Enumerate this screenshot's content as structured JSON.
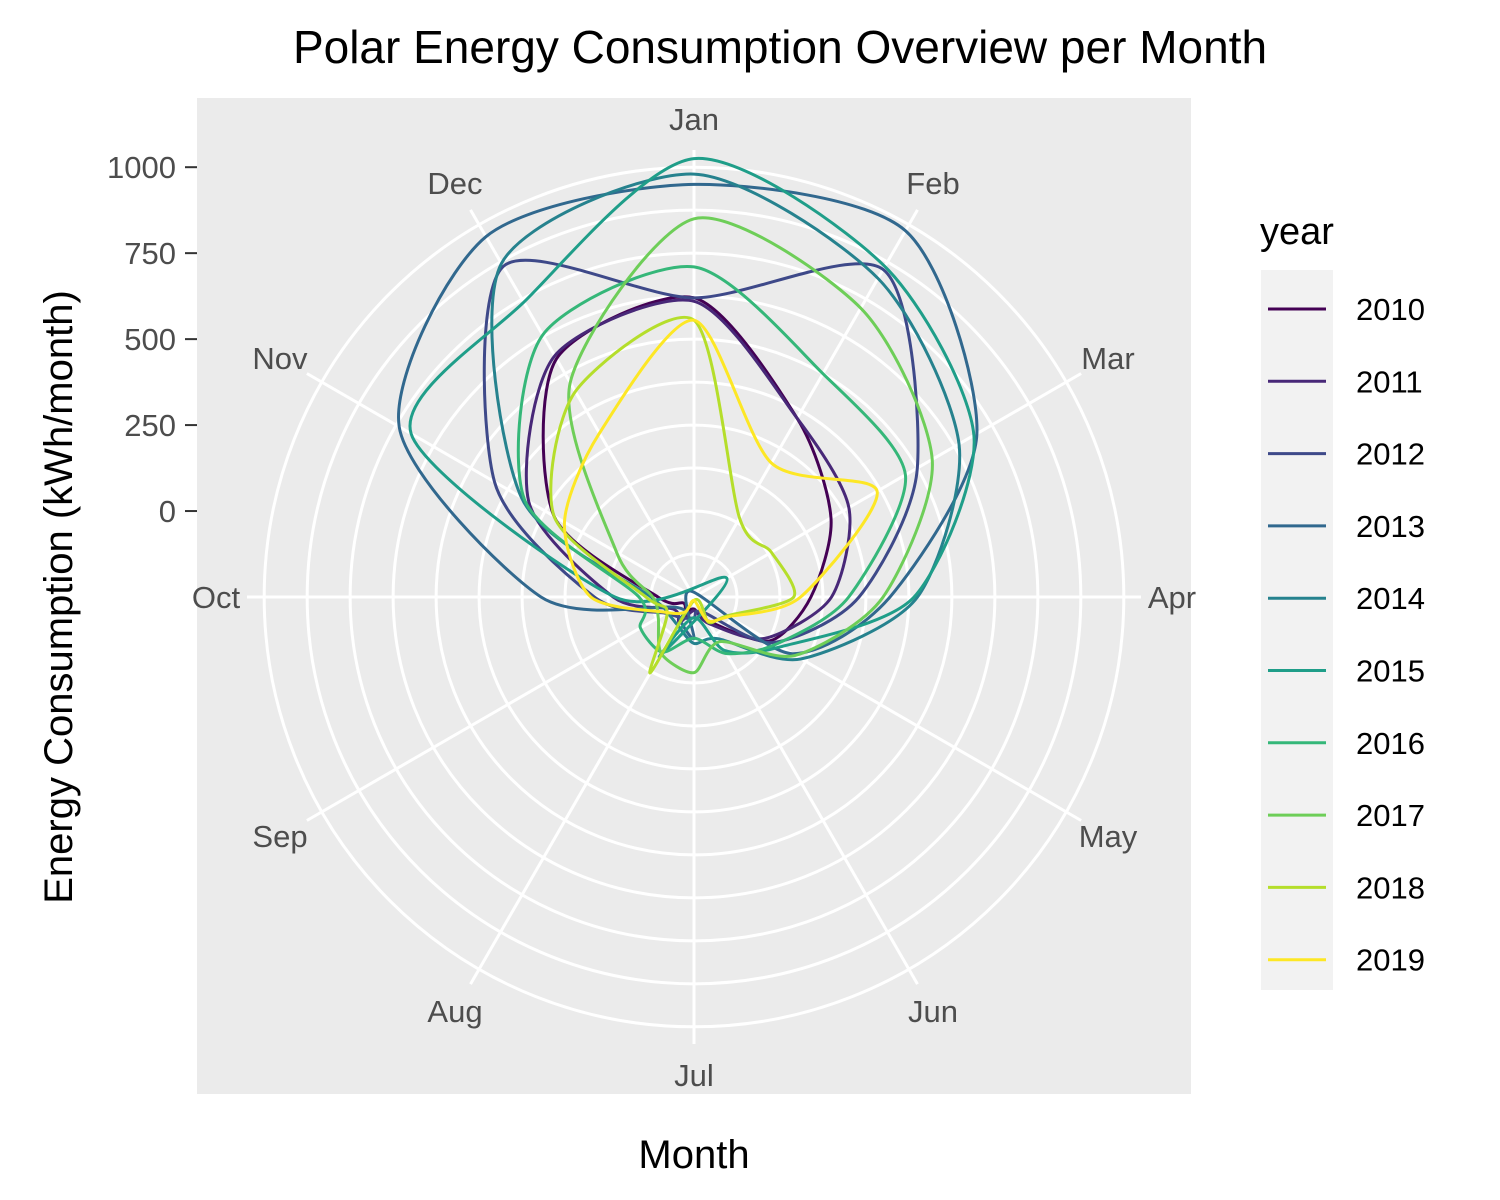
{
  "chart_data": {
    "type": "line",
    "coord": "polar",
    "title": "Polar Energy Consumption Overview per Month",
    "xlabel": "Month",
    "ylabel": "Energy Consumption (kWh/month)",
    "categories": [
      "Jan",
      "Feb",
      "Mar",
      "Apr",
      "May",
      "Jun",
      "Jul",
      "Aug",
      "Sep",
      "Oct",
      "Nov",
      "Dec"
    ],
    "yticks": [
      0,
      250,
      500,
      750,
      1000
    ],
    "ylim": [
      -250,
      1050
    ],
    "legend": {
      "title": "year",
      "position": "right"
    },
    "series": [
      {
        "name": "2010",
        "color": "#440154",
        "values": [
          620,
          350,
          210,
          90,
          5,
          -170,
          -215,
          -200,
          -215,
          -145,
          220,
          550
        ]
      },
      {
        "name": "2011",
        "color": "#482878",
        "values": [
          610,
          350,
          270,
          150,
          -10,
          -160,
          -210,
          -165,
          -180,
          -15,
          305,
          560
        ]
      },
      {
        "name": "2012",
        "color": "#3e4989",
        "values": [
          620,
          850,
          500,
          230,
          15,
          -200,
          -190,
          -180,
          -155,
          40,
          420,
          860
        ]
      },
      {
        "name": "2013",
        "color": "#31688e",
        "values": [
          950,
          980,
          700,
          320,
          80,
          -270,
          -130,
          -170,
          -190,
          195,
          740,
          960
        ]
      },
      {
        "name": "2014",
        "color": "#26828e",
        "values": [
          980,
          820,
          640,
          400,
          110,
          -110,
          -115,
          -155,
          -160,
          -125,
          330,
          870
        ]
      },
      {
        "name": "2015",
        "color": "#1f9e89",
        "values": [
          1025,
          860,
          690,
          390,
          40,
          -70,
          -190,
          -50,
          -360,
          -20,
          700,
          740
        ]
      },
      {
        "name": "2016",
        "color": "#35b779",
        "values": [
          710,
          500,
          460,
          200,
          25,
          -60,
          -130,
          -65,
          -70,
          -90,
          320,
          630
        ]
      },
      {
        "name": "2017",
        "color": "#6ece58",
        "values": [
          850,
          720,
          550,
          300,
          90,
          -100,
          -30,
          -60,
          -130,
          -130,
          10,
          470
        ]
      },
      {
        "name": "2018",
        "color": "#b5de2b",
        "values": [
          555,
          15,
          10,
          40,
          -140,
          -165,
          -240,
          5,
          -160,
          -110,
          220,
          440
        ]
      },
      {
        "name": "2019",
        "color": "#fde725",
        "values": [
          555,
          200,
          365,
          60,
          -135,
          -170,
          -240,
          -200,
          -160,
          50,
          185,
          300
        ]
      }
    ]
  }
}
